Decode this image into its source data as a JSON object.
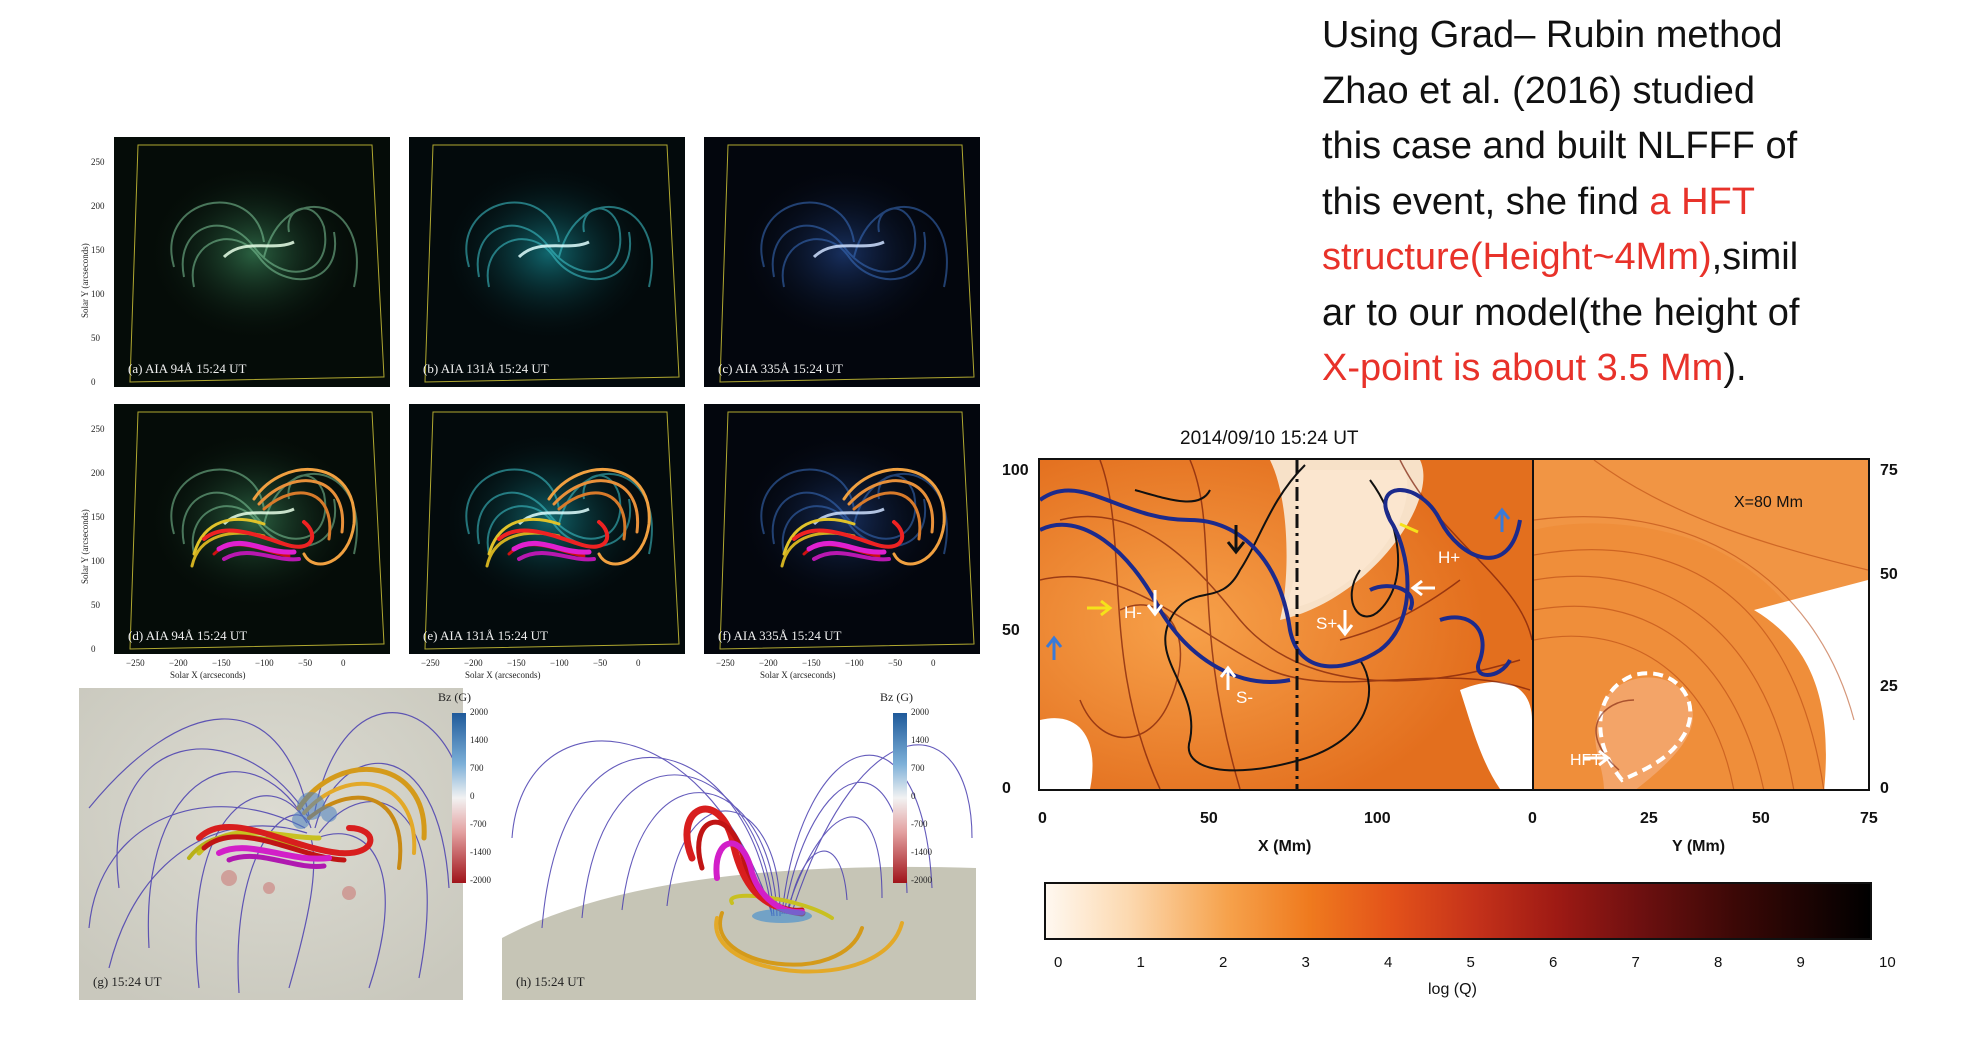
{
  "text": {
    "lines": [
      [
        {
          "t": "Using  Grad– Rubin method",
          "c": "n"
        }
      ],
      [
        {
          "t": "Zhao et al. (2016) studied",
          "c": "n"
        }
      ],
      [
        {
          "t": "this case and built NLFFF of",
          "c": "n"
        }
      ],
      [
        {
          "t": "this event, she find ",
          "c": "n"
        },
        {
          "t": "a HFT",
          "c": "r"
        }
      ],
      [
        {
          "t": "structure(Height~4Mm)",
          "c": "r"
        },
        {
          "t": ",simil",
          "c": "n"
        }
      ],
      [
        {
          "t": "ar to our model(the height of",
          "c": "n"
        }
      ],
      [
        {
          "t": "X-point is about 3.5 Mm",
          "c": "r"
        },
        {
          "t": ").",
          "c": "n"
        }
      ]
    ]
  },
  "aia": {
    "panels": [
      {
        "label": "(a) AIA 94Å  15:24 UT",
        "style": "green",
        "overlay": false
      },
      {
        "label": "(b) AIA 131Å  15:24 UT",
        "style": "cyan",
        "overlay": false
      },
      {
        "label": "(c) AIA 335Å  15:24 UT",
        "style": "blue",
        "overlay": false
      },
      {
        "label": "(d) AIA 94Å  15:24 UT",
        "style": "green",
        "overlay": true
      },
      {
        "label": "(e) AIA 131Å  15:24 UT",
        "style": "cyan",
        "overlay": true
      },
      {
        "label": "(f) AIA 335Å  15:24 UT",
        "style": "blue",
        "overlay": true
      }
    ],
    "y_ticks": [
      "250",
      "200",
      "150",
      "100",
      "50",
      "0"
    ],
    "x_ticks": [
      "−250",
      "−200",
      "−150",
      "−100",
      "−50",
      "0"
    ],
    "y_title": "Solar Y (arcseconds)",
    "x_title": "Solar X (arcseconds)"
  },
  "field3d": {
    "g_label": "(g) 15:24 UT",
    "h_label": "(h) 15:24 UT",
    "cbar_title": "Bz (G)",
    "cbar_ticks": [
      "2000",
      "1400",
      "700",
      "0",
      "-700",
      "-1400",
      "-2000"
    ]
  },
  "qmap": {
    "title": "2014/09/10 15:24 UT",
    "left_y_ticks": [
      "100",
      "50",
      "0"
    ],
    "left_x_ticks": [
      "0",
      "50",
      "100",
      "0"
    ],
    "left_x_title": "X (Mm)",
    "right_x_ticks": [
      "25",
      "50",
      "75"
    ],
    "right_x_title": "Y (Mm)",
    "right_y_ticks": [
      "75",
      "50",
      "25",
      "0"
    ],
    "annotations": {
      "hminus": "H-",
      "splus": "S+",
      "sminus": "S-",
      "hplus": "H+",
      "xslice": "X=80 Mm",
      "hft": "HFT"
    },
    "colorbar_ticks": [
      "0",
      "1",
      "2",
      "3",
      "4",
      "5",
      "6",
      "7",
      "8",
      "9",
      "10"
    ],
    "colorbar_title": "log (Q)",
    "colors": {
      "orange": "#f08a2e",
      "dark_red": "#7a1c08",
      "contour_blue": "#1c2a8c"
    }
  }
}
